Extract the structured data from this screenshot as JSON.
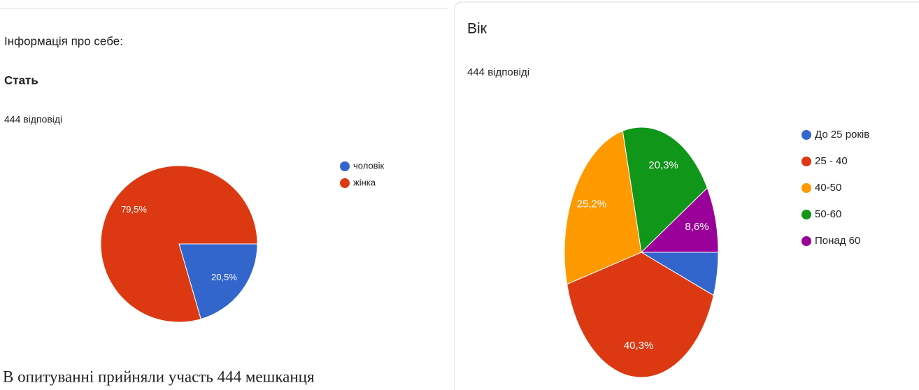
{
  "chart_data": [
    {
      "type": "pie",
      "header": "Інформація про себе:",
      "title": "Стать",
      "subtitle": "444 відповіді",
      "categories": [
        "чоловік",
        "жінка"
      ],
      "values": [
        20.5,
        79.5
      ],
      "value_labels": [
        "20,5%",
        "79,5%"
      ],
      "colors": [
        "#3366cc",
        "#dc3912"
      ],
      "legend": "right"
    },
    {
      "type": "pie",
      "title": "Вік",
      "subtitle": "444 відповіді",
      "categories": [
        "До 25 років",
        "25 - 40",
        "40-50",
        "50-60",
        "Понад 60"
      ],
      "values": [
        5.6,
        40.3,
        25.2,
        20.3,
        8.6
      ],
      "value_labels": [
        null,
        "40,3%",
        "25,2%",
        "20,3%",
        "8,6%"
      ],
      "colors": [
        "#3366cc",
        "#dc3912",
        "#ff9900",
        "#109618",
        "#990099"
      ],
      "legend": "right"
    }
  ],
  "caption": "В опитуванні прийняли участь  444 мешканця"
}
